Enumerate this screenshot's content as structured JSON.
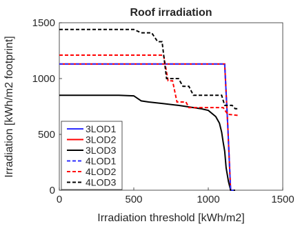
{
  "chart_data": {
    "type": "line",
    "title": "Roof irradiation",
    "xlabel": "Irradiation threshold [kWh/m2]",
    "ylabel": "Irradiation [kWh/m2 footprint]",
    "xlim": [
      0,
      1500
    ],
    "ylim": [
      0,
      1500
    ],
    "xticks": [
      "0",
      "500",
      "1000",
      "1500"
    ],
    "yticks": [
      "0",
      "500",
      "1000",
      "1500"
    ],
    "grid": false,
    "legend": "bottom-left",
    "series": [
      {
        "name": "3LOD1",
        "color": "#2c2cff",
        "dash": "solid",
        "points": [
          [
            0,
            1130
          ],
          [
            1110,
            1130
          ],
          [
            1130,
            600
          ],
          [
            1150,
            0
          ],
          [
            1170,
            0
          ]
        ]
      },
      {
        "name": "3LOD2",
        "color": "#ff0000",
        "dash": "solid",
        "points": [
          [
            0,
            1130
          ],
          [
            1110,
            1130
          ],
          [
            1130,
            600
          ],
          [
            1150,
            0
          ],
          [
            1170,
            0
          ]
        ]
      },
      {
        "name": "3LOD3",
        "color": "#000000",
        "dash": "solid",
        "points": [
          [
            0,
            850
          ],
          [
            400,
            850
          ],
          [
            500,
            845
          ],
          [
            550,
            800
          ],
          [
            600,
            790
          ],
          [
            700,
            775
          ],
          [
            800,
            760
          ],
          [
            900,
            740
          ],
          [
            950,
            730
          ],
          [
            1000,
            715
          ],
          [
            1050,
            660
          ],
          [
            1075,
            600
          ],
          [
            1090,
            520
          ],
          [
            1100,
            430
          ],
          [
            1110,
            350
          ],
          [
            1120,
            200
          ],
          [
            1135,
            80
          ],
          [
            1150,
            0
          ],
          [
            1180,
            0
          ]
        ]
      },
      {
        "name": "4LOD1",
        "color": "#2c2cff",
        "dash": "dashed",
        "points": [
          [
            0,
            1130
          ],
          [
            1110,
            1130
          ],
          [
            1130,
            600
          ],
          [
            1150,
            0
          ],
          [
            1170,
            0
          ]
        ]
      },
      {
        "name": "4LOD2",
        "color": "#ff0000",
        "dash": "dashed",
        "points": [
          [
            0,
            1210
          ],
          [
            700,
            1210
          ],
          [
            730,
            980
          ],
          [
            760,
            980
          ],
          [
            790,
            790
          ],
          [
            850,
            790
          ],
          [
            870,
            740
          ],
          [
            1100,
            740
          ],
          [
            1130,
            680
          ],
          [
            1200,
            670
          ]
        ]
      },
      {
        "name": "4LOD3",
        "color": "#000000",
        "dash": "dashed",
        "points": [
          [
            0,
            1440
          ],
          [
            500,
            1440
          ],
          [
            550,
            1410
          ],
          [
            620,
            1410
          ],
          [
            660,
            1330
          ],
          [
            690,
            1330
          ],
          [
            720,
            1000
          ],
          [
            800,
            1000
          ],
          [
            830,
            930
          ],
          [
            870,
            930
          ],
          [
            900,
            850
          ],
          [
            1090,
            850
          ],
          [
            1110,
            760
          ],
          [
            1160,
            760
          ],
          [
            1180,
            730
          ],
          [
            1200,
            730
          ]
        ]
      }
    ]
  }
}
